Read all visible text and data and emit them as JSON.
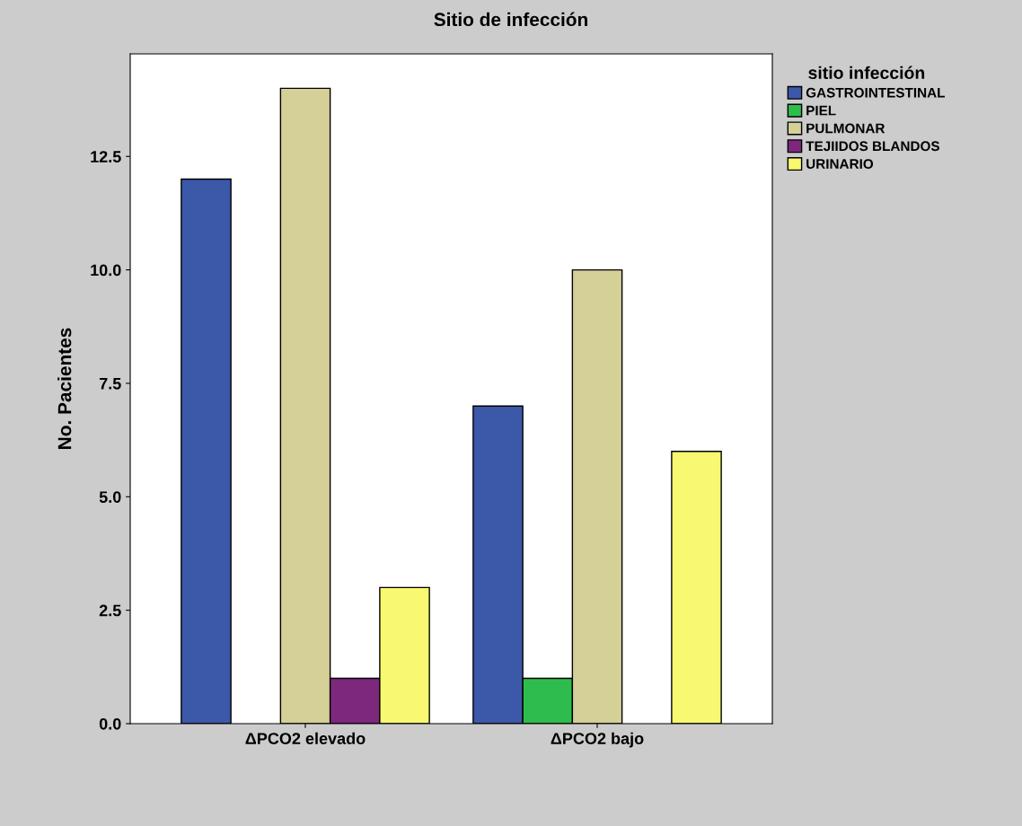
{
  "chart_data": {
    "type": "bar",
    "title": "Sitio de infección",
    "ylabel": "No. Pacientes",
    "legend_title": "sitio infección",
    "categories": [
      "ΔPCO2 elevado",
      "ΔPCO2 bajo"
    ],
    "series": [
      {
        "name": "GASTROINTESTINAL",
        "color": "#3c58a8",
        "values": [
          12,
          7
        ]
      },
      {
        "name": "PIEL",
        "color": "#2ebd4c",
        "values": [
          null,
          1
        ]
      },
      {
        "name": "PULMONAR",
        "color": "#d5cf98",
        "values": [
          14,
          10
        ]
      },
      {
        "name": "TEJIIDOS BLANDOS",
        "color": "#7d287d",
        "values": [
          1,
          null
        ]
      },
      {
        "name": "URINARIO",
        "color": "#f9f871",
        "values": [
          3,
          6
        ]
      }
    ],
    "ylim": [
      0,
      14.76
    ],
    "yticks": [
      {
        "value": 0,
        "label": "0.0"
      },
      {
        "value": 2.5,
        "label": "2.5"
      },
      {
        "value": 5,
        "label": "5.0"
      },
      {
        "value": 7.5,
        "label": "7.5"
      },
      {
        "value": 10,
        "label": "10.0"
      },
      {
        "value": 12.5,
        "label": "12.5"
      }
    ],
    "grid": false,
    "legend": "top right"
  }
}
